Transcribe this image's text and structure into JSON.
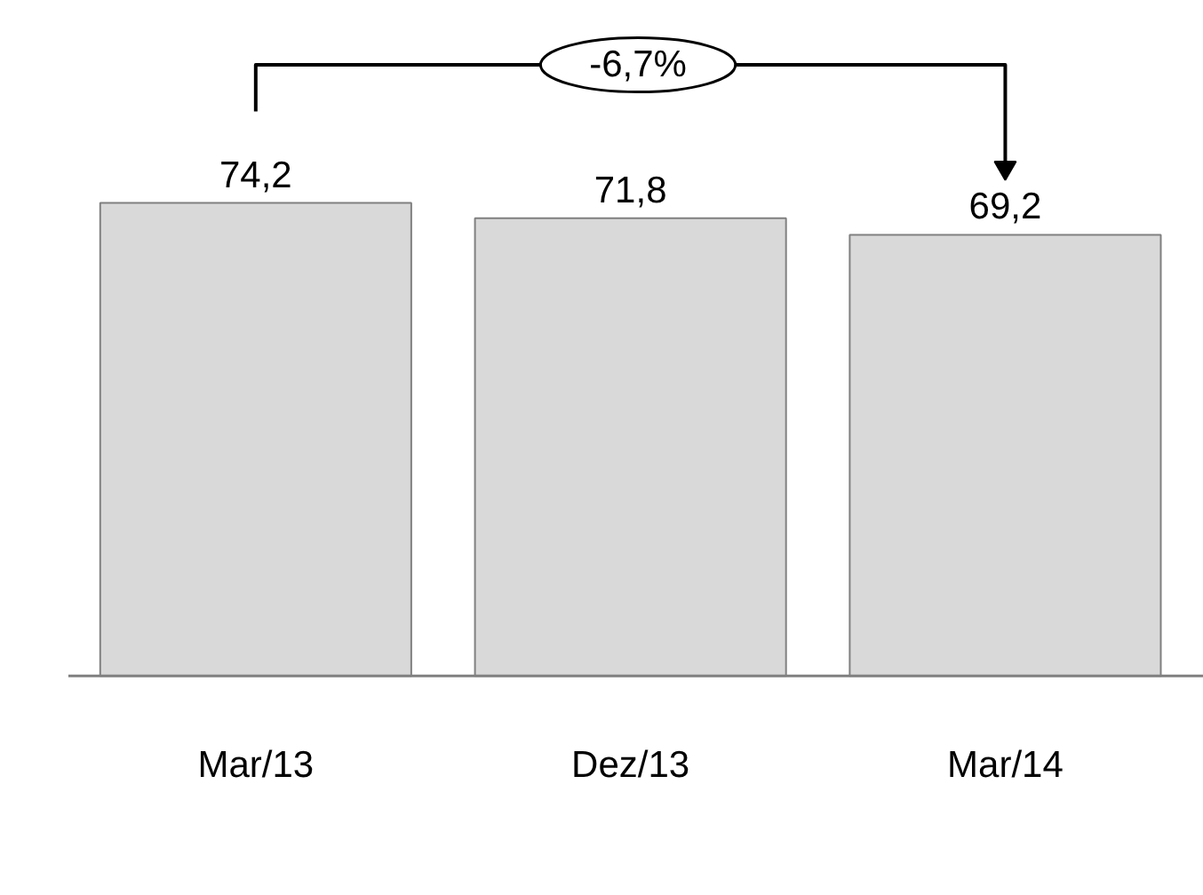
{
  "chart_data": {
    "type": "bar",
    "categories": [
      "Mar/13",
      "Dez/13",
      "Mar/14"
    ],
    "values": [
      74.2,
      71.8,
      69.2
    ],
    "value_labels": [
      "74,2",
      "71,8",
      "69,2"
    ],
    "color": "#d9d9d9",
    "annotations": [
      "-6,7%"
    ],
    "grid": false
  }
}
